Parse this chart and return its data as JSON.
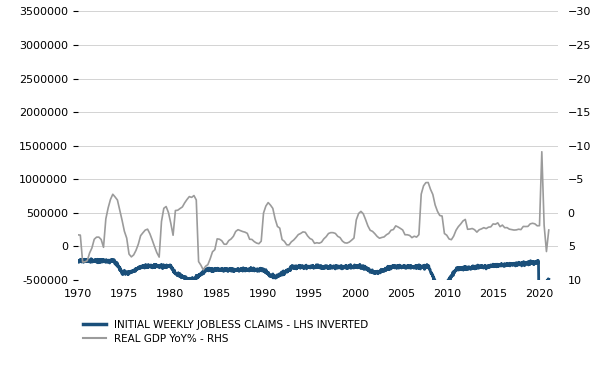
{
  "lhs_label": "INITIAL WEEKLY JOBLESS CLAIMS - LHS INVERTED",
  "rhs_label": "REAL GDP YoY% - RHS",
  "lhs_color": "#1a4f7a",
  "rhs_color": "#9b9b9b",
  "lhs_ylim": [
    -500000,
    3500000
  ],
  "rhs_ylim": [
    10,
    -30
  ],
  "xlim": [
    1970,
    2022
  ],
  "xticks": [
    1970,
    1975,
    1980,
    1985,
    1990,
    1995,
    2000,
    2005,
    2010,
    2015,
    2020
  ],
  "lhs_yticks": [
    -500000,
    0,
    500000,
    1000000,
    1500000,
    2000000,
    2500000,
    3000000,
    3500000
  ],
  "rhs_yticks": [
    10,
    5,
    0,
    -5,
    -10,
    -15,
    -20,
    -25,
    -30
  ],
  "background_color": "#ffffff",
  "grid_color": "#cccccc",
  "lhs_linewidth": 2.0,
  "rhs_linewidth": 1.2,
  "legend_fontsize": 7.5,
  "tick_fontsize": 8
}
